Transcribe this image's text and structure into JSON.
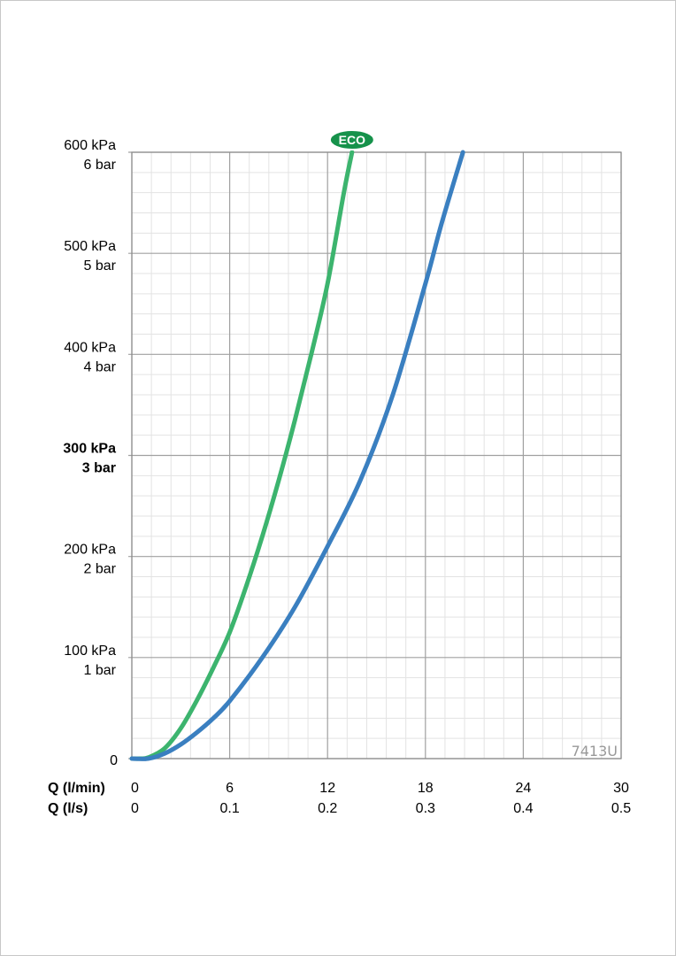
{
  "chart_data": {
    "type": "line",
    "x_axes": [
      {
        "label": "Q (l/min)",
        "ticks": [
          "0",
          "6",
          "12",
          "18",
          "24",
          "30"
        ],
        "range": [
          0,
          30
        ]
      },
      {
        "label": "Q (l/s)",
        "ticks": [
          "0",
          "0.1",
          "0.2",
          "0.3",
          "0.4",
          "0.5"
        ],
        "range": [
          0,
          0.5
        ]
      }
    ],
    "y_axis": {
      "range": [
        0,
        600
      ],
      "ticks": [
        {
          "value": 600,
          "kpa": "600 kPa",
          "bar": "6 bar",
          "bold": false
        },
        {
          "value": 500,
          "kpa": "500 kPa",
          "bar": "5 bar",
          "bold": false
        },
        {
          "value": 400,
          "kpa": "400 kPa",
          "bar": "4 bar",
          "bold": false
        },
        {
          "value": 300,
          "kpa": "300 kPa",
          "bar": "3 bar",
          "bold": true
        },
        {
          "value": 200,
          "kpa": "200 kPa",
          "bar": "2 bar",
          "bold": false
        },
        {
          "value": 100,
          "kpa": "100 kPa",
          "bar": "1 bar",
          "bold": false
        },
        {
          "value": 0,
          "kpa": "0",
          "bar": "",
          "bold": false
        }
      ]
    },
    "grid": true,
    "minor_grid_divisions": 5,
    "series": [
      {
        "color": "#3cb46e",
        "label_badge": "ECO",
        "points": [
          [
            0,
            0
          ],
          [
            0.5,
            0
          ],
          [
            1,
            1
          ],
          [
            2,
            10
          ],
          [
            3,
            30
          ],
          [
            4,
            58
          ],
          [
            5,
            90
          ],
          [
            6,
            125
          ],
          [
            7,
            170
          ],
          [
            8,
            220
          ],
          [
            9,
            275
          ],
          [
            10,
            335
          ],
          [
            11,
            400
          ],
          [
            12,
            470
          ],
          [
            13,
            560
          ],
          [
            13.5,
            600
          ]
        ]
      },
      {
        "color": "#3a7fc0",
        "points": [
          [
            0,
            0
          ],
          [
            1,
            0
          ],
          [
            2,
            5
          ],
          [
            3,
            14
          ],
          [
            4,
            26
          ],
          [
            5,
            40
          ],
          [
            6,
            57
          ],
          [
            8,
            100
          ],
          [
            10,
            150
          ],
          [
            12,
            210
          ],
          [
            14,
            275
          ],
          [
            16,
            360
          ],
          [
            18,
            470
          ],
          [
            19,
            530
          ],
          [
            20.3,
            600
          ]
        ]
      }
    ],
    "annotations": [
      "7413U"
    ]
  }
}
